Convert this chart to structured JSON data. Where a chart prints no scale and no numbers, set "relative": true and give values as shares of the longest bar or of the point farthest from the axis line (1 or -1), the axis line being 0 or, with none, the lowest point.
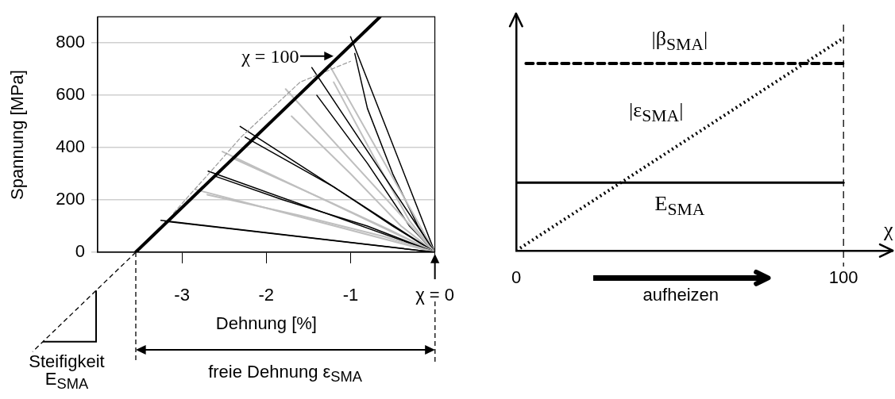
{
  "chart_data": [
    {
      "type": "line",
      "xlabel": "Dehnung [%]",
      "ylabel": "Spannung [MPa]",
      "xlim": [
        -4,
        0
      ],
      "ylim": [
        0,
        900
      ],
      "xticks": [
        -3,
        -2,
        -1,
        {
          "value": 0,
          "label": "χ = 0"
        }
      ],
      "yticks": [
        0,
        200,
        400,
        600,
        800
      ],
      "grid": "y",
      "legend": false,
      "marker": "none",
      "series": [
        {
          "color": "#000000",
          "x": [
            -3.55,
            -0.65
          ],
          "values": [
            0,
            900
          ]
        },
        {
          "color": "#999999",
          "line_style": "dashed",
          "x": [
            -3.1,
            -2.85,
            -2.6,
            -2.3,
            -1.9,
            -1.6,
            -1.3,
            -1.0
          ],
          "values": [
            150,
            240,
            330,
            440,
            560,
            650,
            690,
            730
          ]
        },
        {
          "color": "#000000",
          "x": [
            -3.25,
            0
          ],
          "values": [
            122,
            0
          ]
        },
        {
          "color": "#000000",
          "x": [
            -3.2,
            0
          ],
          "values": [
            118,
            0
          ]
        },
        {
          "color": "#bfbfbf",
          "x": [
            -2.84,
            0
          ],
          "values": [
            240,
            0
          ]
        },
        {
          "color": "#bfbfbf",
          "x": [
            -2.7,
            -1.6,
            -0.6,
            0
          ],
          "values": [
            220,
            140,
            60,
            0
          ]
        },
        {
          "color": "#000000",
          "x": [
            -2.69,
            0
          ],
          "values": [
            310,
            0
          ]
        },
        {
          "color": "#000000",
          "x": [
            -2.6,
            -1.8,
            -0.8,
            0
          ],
          "values": [
            290,
            200,
            100,
            0
          ]
        },
        {
          "color": "#bfbfbf",
          "x": [
            -2.52,
            0
          ],
          "values": [
            385,
            0
          ]
        },
        {
          "color": "#bfbfbf",
          "x": [
            -2.4,
            -1.3,
            -0.5,
            0
          ],
          "values": [
            360,
            200,
            80,
            0
          ]
        },
        {
          "color": "#000000",
          "x": [
            -2.31,
            0
          ],
          "values": [
            481,
            0
          ]
        },
        {
          "color": "#000000",
          "x": [
            -2.25,
            -1.2,
            -0.5,
            0
          ],
          "values": [
            440,
            250,
            100,
            0
          ]
        },
        {
          "color": "#bfbfbf",
          "x": [
            -1.77,
            0
          ],
          "values": [
            624,
            0
          ]
        },
        {
          "color": "#bfbfbf",
          "x": [
            -1.7,
            -1.0,
            -0.4,
            0
          ],
          "values": [
            520,
            300,
            100,
            0
          ]
        },
        {
          "color": "#000000",
          "x": [
            -1.46,
            0
          ],
          "values": [
            706,
            0
          ]
        },
        {
          "color": "#000000",
          "x": [
            -1.4,
            -0.8,
            -0.3,
            0
          ],
          "values": [
            600,
            340,
            100,
            0
          ]
        },
        {
          "color": "#bfbfbf",
          "x": [
            -1.25,
            0
          ],
          "values": [
            715,
            0
          ]
        },
        {
          "color": "#bfbfbf",
          "x": [
            -1.2,
            -0.7,
            -0.3,
            0
          ],
          "values": [
            650,
            350,
            120,
            0
          ]
        },
        {
          "color": "#000000",
          "x": [
            -1.0,
            0
          ],
          "values": [
            824,
            0
          ]
        },
        {
          "color": "#000000",
          "x": [
            -0.95,
            -0.8,
            -0.5,
            -0.2,
            0
          ],
          "values": [
            760,
            550,
            300,
            100,
            0
          ]
        }
      ],
      "annotations": [
        {
          "text": "χ = 100",
          "x": -1.2,
          "y": 750
        },
        "Steifigkeit E$_{SMA}$",
        "freie Dehnung ε$_{SMA}$"
      ]
    },
    {
      "type": "line",
      "relative": true,
      "xlabel": "χ",
      "xlim": [
        0,
        115
      ],
      "xticks": [
        0,
        100
      ],
      "grid": false,
      "legend": false,
      "marker": "none",
      "tick_labels": "x",
      "series": [
        {
          "name": "|β$_{SMA}$|",
          "color": "#000000",
          "line_style": "dashed",
          "x": [
            3,
            100
          ],
          "values": [
            0.88,
            0.88
          ]
        },
        {
          "name": "|ε$_{SMA}$|",
          "color": "#000000",
          "line_style": "dotted",
          "x": [
            0,
            100
          ],
          "values": [
            0,
            1
          ]
        },
        {
          "name": "E$_{SMA}$",
          "color": "#000000",
          "line_style": "solid",
          "x": [
            0,
            100
          ],
          "values": [
            0.32,
            0.32
          ]
        }
      ],
      "ref_lines": [
        {
          "axis": "x",
          "value": 100,
          "line_style": "dashed"
        }
      ],
      "annotations": [
        "aufheizen"
      ]
    }
  ]
}
